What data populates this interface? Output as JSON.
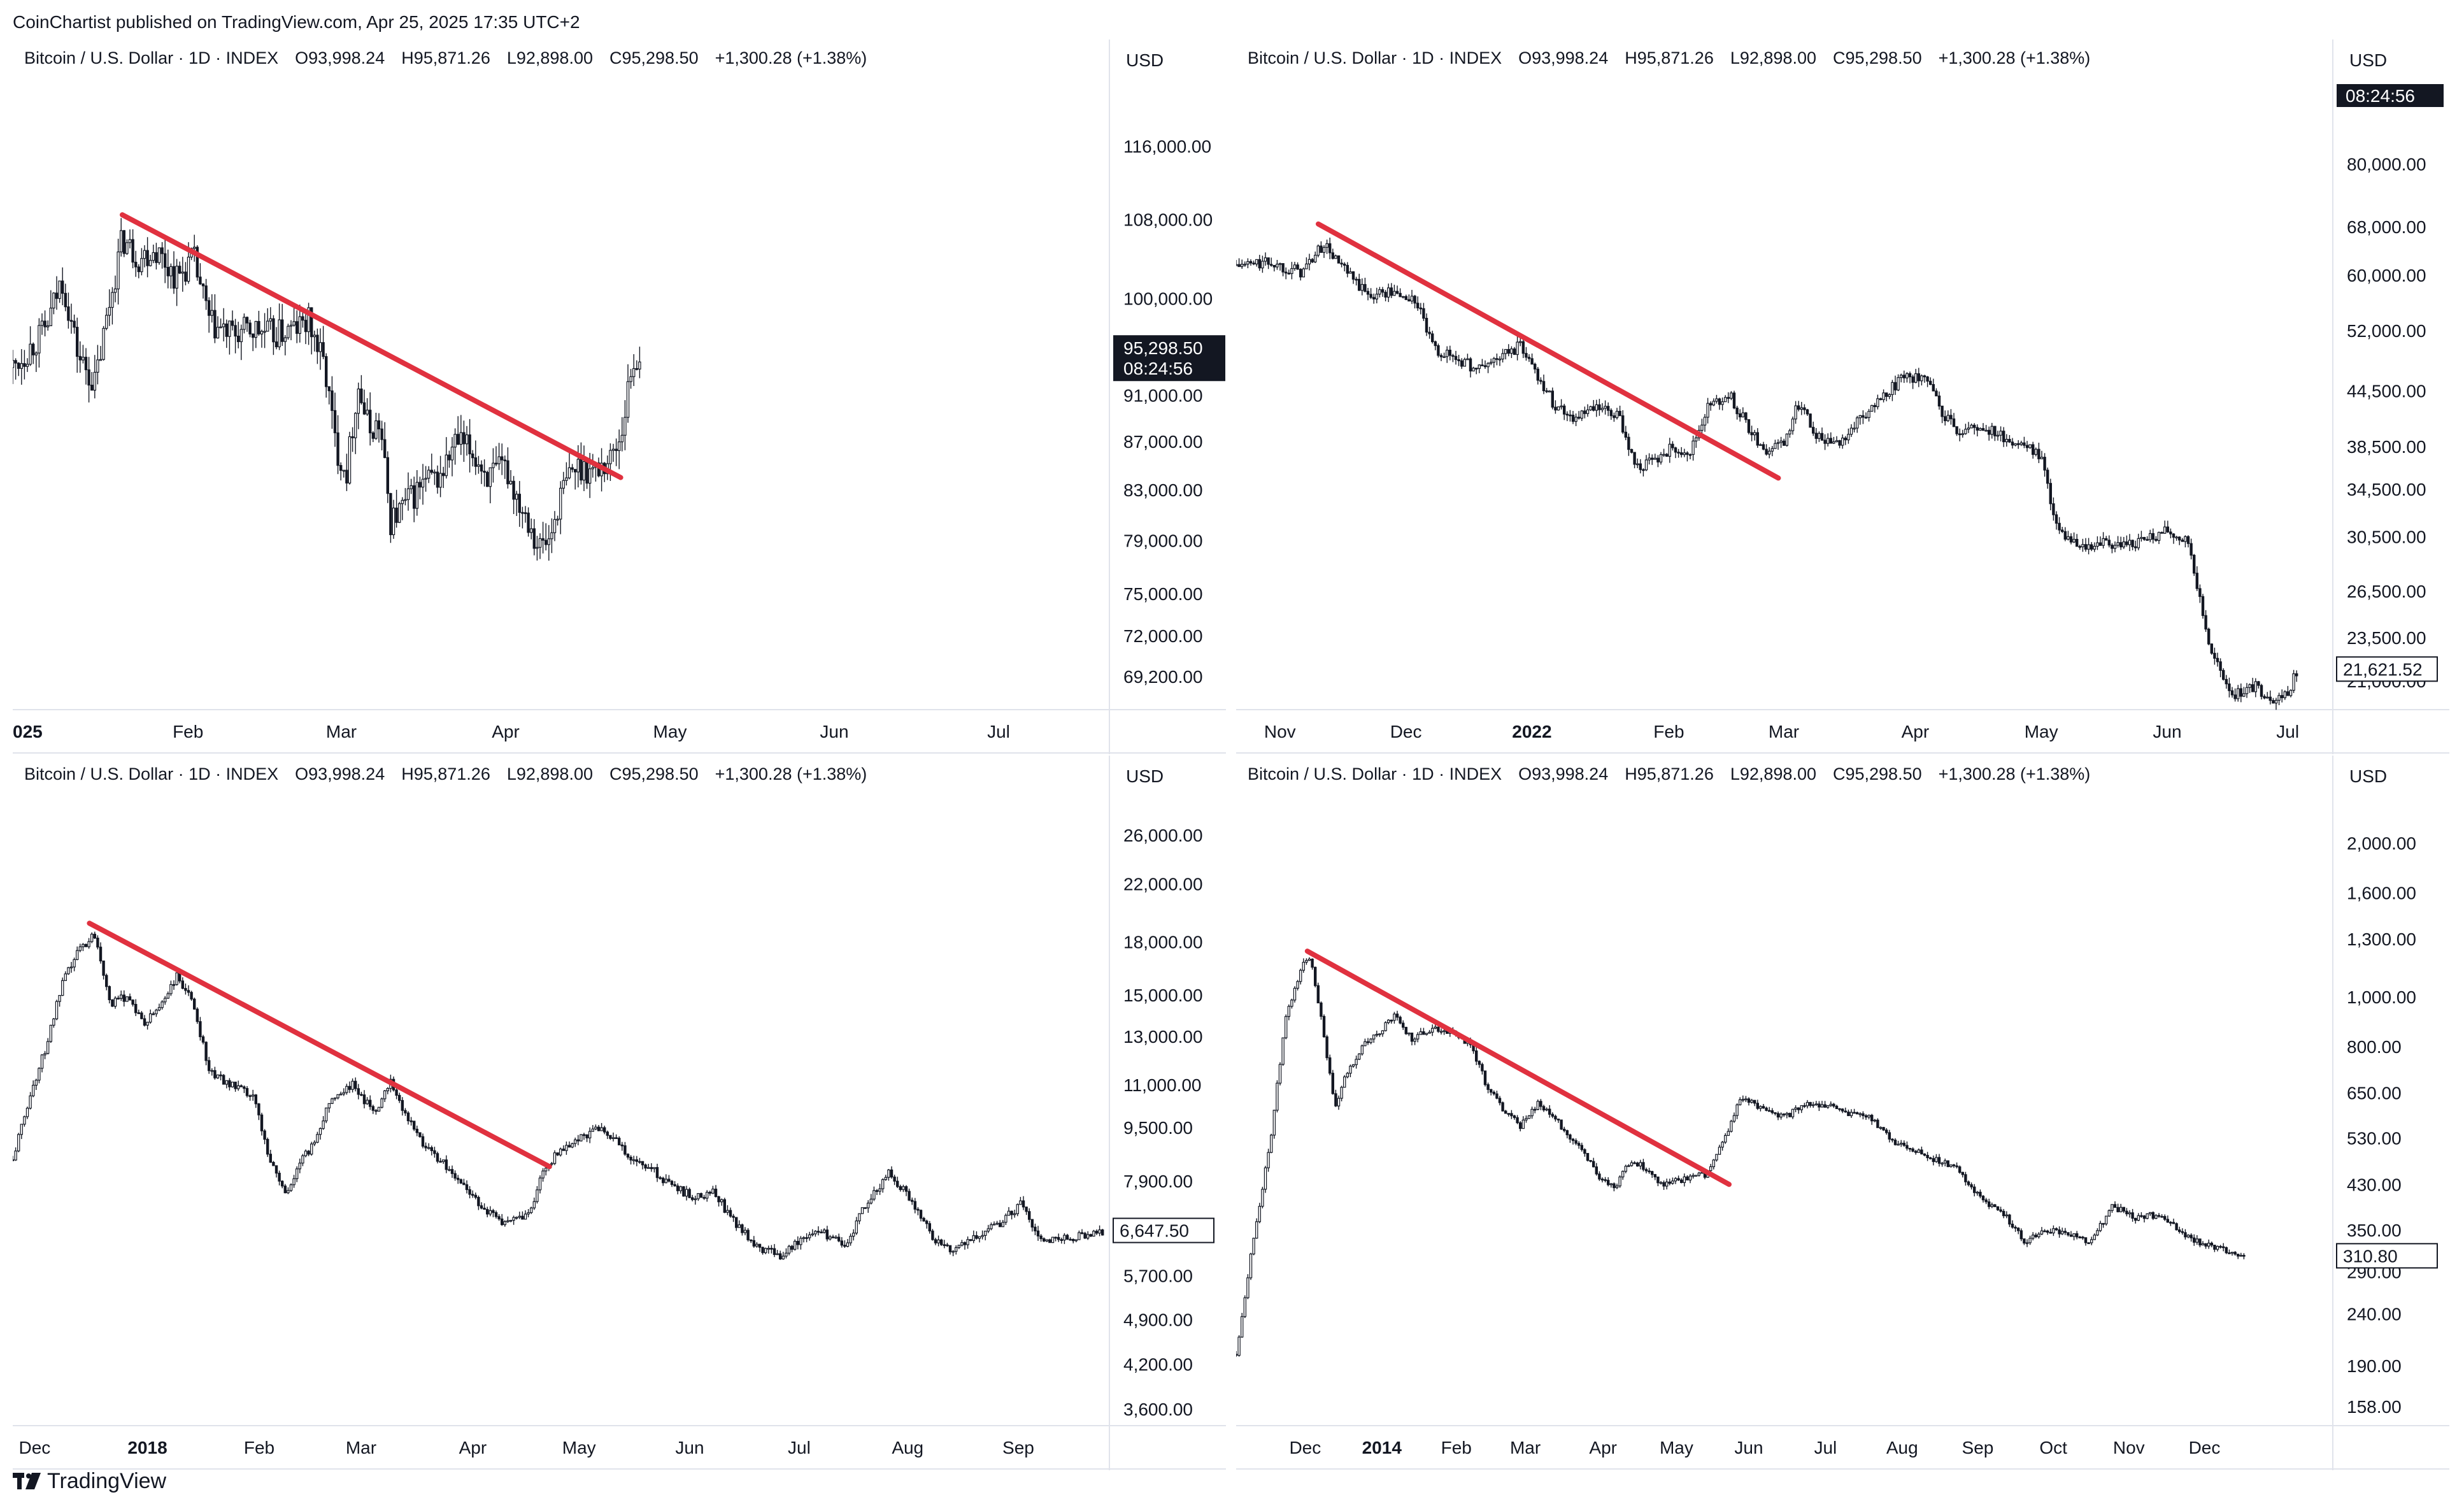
{
  "header": {
    "publisher": "CoinChartist published on TradingView.com, Apr 25, 2025 17:35 UTC+2"
  },
  "footer": {
    "brand": "TradingView"
  },
  "chart_data": [
    {
      "type": "candlestick",
      "legend": {
        "symbol": "Bitcoin / U.S. Dollar · 1D · INDEX",
        "open": "O93,998.24",
        "high": "H95,871.26",
        "low": "L92,898.00",
        "close": "C95,298.50",
        "change": "+1,300.28 (+1.38%)"
      },
      "unit": "USD",
      "log_scale": true,
      "y_ticks": [
        "116,000.00",
        "108,000.00",
        "100,000.00",
        "91,000.00",
        "87,000.00",
        "83,000.00",
        "79,000.00",
        "75,000.00",
        "72,000.00",
        "69,200.00"
      ],
      "y_tick_values": [
        116000,
        108000,
        100000,
        91000,
        87000,
        83000,
        79000,
        75000,
        72000,
        69200
      ],
      "y_range": [
        67000,
        124000
      ],
      "x_labels": [
        "025",
        "Feb",
        "Mar",
        "Apr",
        "May",
        "Jun",
        "Jul"
      ],
      "x_label_fracs": [
        0.0,
        0.16,
        0.3,
        0.45,
        0.6,
        0.75,
        0.9
      ],
      "x_label_bold": [
        true,
        false,
        false,
        false,
        false,
        false,
        false
      ],
      "price_marker": {
        "value": 95298.5,
        "label": "95,298.50",
        "sub": "08:24:56",
        "style": "filled"
      },
      "trendline": {
        "from": [
          0.1,
          108500
        ],
        "to": [
          0.555,
          84000
        ]
      },
      "series": [
        {
          "f": 0.0,
          "v": 93500
        },
        {
          "f": 0.03,
          "v": 97000
        },
        {
          "f": 0.045,
          "v": 102000
        },
        {
          "f": 0.06,
          "v": 94500
        },
        {
          "f": 0.075,
          "v": 92000
        },
        {
          "f": 0.09,
          "v": 100500
        },
        {
          "f": 0.1,
          "v": 106000
        },
        {
          "f": 0.115,
          "v": 104000
        },
        {
          "f": 0.13,
          "v": 105000
        },
        {
          "f": 0.15,
          "v": 102000
        },
        {
          "f": 0.165,
          "v": 104000
        },
        {
          "f": 0.18,
          "v": 97500
        },
        {
          "f": 0.2,
          "v": 96500
        },
        {
          "f": 0.22,
          "v": 97000
        },
        {
          "f": 0.24,
          "v": 96500
        },
        {
          "f": 0.26,
          "v": 97200
        },
        {
          "f": 0.27,
          "v": 97800
        },
        {
          "f": 0.285,
          "v": 93500
        },
        {
          "f": 0.295,
          "v": 86500
        },
        {
          "f": 0.305,
          "v": 84500
        },
        {
          "f": 0.315,
          "v": 92000
        },
        {
          "f": 0.325,
          "v": 88000
        },
        {
          "f": 0.335,
          "v": 88500
        },
        {
          "f": 0.345,
          "v": 80500
        },
        {
          "f": 0.36,
          "v": 82000
        },
        {
          "f": 0.375,
          "v": 83500
        },
        {
          "f": 0.39,
          "v": 84000
        },
        {
          "f": 0.405,
          "v": 87000
        },
        {
          "f": 0.42,
          "v": 86000
        },
        {
          "f": 0.435,
          "v": 84000
        },
        {
          "f": 0.45,
          "v": 84800
        },
        {
          "f": 0.46,
          "v": 82500
        },
        {
          "f": 0.47,
          "v": 81000
        },
        {
          "f": 0.48,
          "v": 78500
        },
        {
          "f": 0.49,
          "v": 79000
        },
        {
          "f": 0.5,
          "v": 82500
        },
        {
          "f": 0.51,
          "v": 84500
        },
        {
          "f": 0.52,
          "v": 85000
        },
        {
          "f": 0.53,
          "v": 84500
        },
        {
          "f": 0.545,
          "v": 85500
        },
        {
          "f": 0.555,
          "v": 87500
        },
        {
          "f": 0.565,
          "v": 93500
        },
        {
          "f": 0.575,
          "v": 95300
        }
      ],
      "series_end_frac": 0.575
    },
    {
      "type": "candlestick",
      "legend": {
        "symbol": "Bitcoin / U.S. Dollar · 1D · INDEX",
        "open": "O93,998.24",
        "high": "H95,871.26",
        "low": "L92,898.00",
        "close": "C95,298.50",
        "change": "+1,300.28 (+1.38%)"
      },
      "unit": "USD",
      "log_scale": true,
      "y_ticks": [
        "80,000.00",
        "68,000.00",
        "60,000.00",
        "52,000.00",
        "44,500.00",
        "38,500.00",
        "34,500.00",
        "30,500.00",
        "26,500.00",
        "23,500.00",
        "21,000.00"
      ],
      "y_tick_values": [
        80000,
        68000,
        60000,
        52000,
        44500,
        38500,
        34500,
        30500,
        26500,
        23500,
        21000
      ],
      "y_range": [
        19500,
        100000
      ],
      "x_labels": [
        "Nov",
        "Dec",
        "2022",
        "Feb",
        "Mar",
        "Apr",
        "May",
        "Jun",
        "Jul"
      ],
      "x_label_fracs": [
        0.04,
        0.155,
        0.27,
        0.395,
        0.5,
        0.62,
        0.735,
        0.85,
        0.96
      ],
      "x_label_bold": [
        false,
        false,
        true,
        false,
        false,
        false,
        false,
        false,
        false
      ],
      "top_marker": {
        "label": "08:24:56"
      },
      "price_marker": {
        "value": 21621.52,
        "label": "21,621.52",
        "style": "outline"
      },
      "trendline": {
        "from": [
          0.075,
          68500
        ],
        "to": [
          0.495,
          35500
        ]
      },
      "series": [
        {
          "f": 0.0,
          "v": 61500
        },
        {
          "f": 0.03,
          "v": 62000
        },
        {
          "f": 0.06,
          "v": 60500
        },
        {
          "f": 0.08,
          "v": 65000
        },
        {
          "f": 0.1,
          "v": 60500
        },
        {
          "f": 0.12,
          "v": 57000
        },
        {
          "f": 0.14,
          "v": 57500
        },
        {
          "f": 0.165,
          "v": 56000
        },
        {
          "f": 0.18,
          "v": 49500
        },
        {
          "f": 0.2,
          "v": 48500
        },
        {
          "f": 0.22,
          "v": 47000
        },
        {
          "f": 0.24,
          "v": 48500
        },
        {
          "f": 0.26,
          "v": 50000
        },
        {
          "f": 0.275,
          "v": 46500
        },
        {
          "f": 0.29,
          "v": 43000
        },
        {
          "f": 0.31,
          "v": 41500
        },
        {
          "f": 0.33,
          "v": 42500
        },
        {
          "f": 0.35,
          "v": 41500
        },
        {
          "f": 0.365,
          "v": 36500
        },
        {
          "f": 0.38,
          "v": 37000
        },
        {
          "f": 0.4,
          "v": 38500
        },
        {
          "f": 0.415,
          "v": 38000
        },
        {
          "f": 0.43,
          "v": 42500
        },
        {
          "f": 0.45,
          "v": 44000
        },
        {
          "f": 0.47,
          "v": 40000
        },
        {
          "f": 0.485,
          "v": 38000
        },
        {
          "f": 0.5,
          "v": 39000
        },
        {
          "f": 0.515,
          "v": 43500
        },
        {
          "f": 0.53,
          "v": 39500
        },
        {
          "f": 0.55,
          "v": 39000
        },
        {
          "f": 0.57,
          "v": 41500
        },
        {
          "f": 0.59,
          "v": 43500
        },
        {
          "f": 0.61,
          "v": 46500
        },
        {
          "f": 0.63,
          "v": 45500
        },
        {
          "f": 0.645,
          "v": 42000
        },
        {
          "f": 0.66,
          "v": 40000
        },
        {
          "f": 0.68,
          "v": 40500
        },
        {
          "f": 0.7,
          "v": 39500
        },
        {
          "f": 0.72,
          "v": 38500
        },
        {
          "f": 0.735,
          "v": 37500
        },
        {
          "f": 0.75,
          "v": 31000
        },
        {
          "f": 0.77,
          "v": 29500
        },
        {
          "f": 0.79,
          "v": 30000
        },
        {
          "f": 0.81,
          "v": 29800
        },
        {
          "f": 0.83,
          "v": 30300
        },
        {
          "f": 0.85,
          "v": 31000
        },
        {
          "f": 0.87,
          "v": 30000
        },
        {
          "f": 0.89,
          "v": 22500
        },
        {
          "f": 0.91,
          "v": 20300
        },
        {
          "f": 0.93,
          "v": 20700
        },
        {
          "f": 0.95,
          "v": 20000
        },
        {
          "f": 0.96,
          "v": 20500
        },
        {
          "f": 0.97,
          "v": 21600
        }
      ],
      "series_end_frac": 0.97
    },
    {
      "type": "candlestick",
      "legend": {
        "symbol": "Bitcoin / U.S. Dollar · 1D · INDEX",
        "open": "O93,998.24",
        "high": "H95,871.26",
        "low": "L92,898.00",
        "close": "C95,298.50",
        "change": "+1,300.28 (+1.38%)"
      },
      "unit": "USD",
      "log_scale": true,
      "y_ticks": [
        "26,000.00",
        "22,000.00",
        "18,000.00",
        "15,000.00",
        "13,000.00",
        "11,000.00",
        "9,500.00",
        "7,900.00",
        "5,700.00",
        "4,900.00",
        "4,200.00",
        "3,600.00"
      ],
      "y_tick_values": [
        26000,
        22000,
        18000,
        15000,
        13000,
        11000,
        9500,
        7900,
        5700,
        4900,
        4200,
        3600
      ],
      "y_range": [
        3400,
        30000
      ],
      "x_labels": [
        "Dec",
        "2018",
        "Feb",
        "Mar",
        "Apr",
        "May",
        "Jun",
        "Jul",
        "Aug",
        "Sep"
      ],
      "x_label_fracs": [
        0.02,
        0.123,
        0.225,
        0.318,
        0.42,
        0.517,
        0.618,
        0.718,
        0.817,
        0.918
      ],
      "x_label_bold": [
        false,
        true,
        false,
        false,
        false,
        false,
        false,
        false,
        false,
        false
      ],
      "price_marker": {
        "value": 6647.5,
        "label": "6,647.50",
        "style": "outline"
      },
      "trendline": {
        "from": [
          0.07,
          19200
        ],
        "to": [
          0.49,
          8300
        ]
      },
      "series": [
        {
          "f": 0.0,
          "v": 8500
        },
        {
          "f": 0.015,
          "v": 10500
        },
        {
          "f": 0.03,
          "v": 12500
        },
        {
          "f": 0.045,
          "v": 15500
        },
        {
          "f": 0.06,
          "v": 17500
        },
        {
          "f": 0.075,
          "v": 18500
        },
        {
          "f": 0.09,
          "v": 14500
        },
        {
          "f": 0.105,
          "v": 15000
        },
        {
          "f": 0.12,
          "v": 13500
        },
        {
          "f": 0.135,
          "v": 14500
        },
        {
          "f": 0.15,
          "v": 16000
        },
        {
          "f": 0.165,
          "v": 14500
        },
        {
          "f": 0.18,
          "v": 11500
        },
        {
          "f": 0.2,
          "v": 11000
        },
        {
          "f": 0.22,
          "v": 10500
        },
        {
          "f": 0.235,
          "v": 8500
        },
        {
          "f": 0.25,
          "v": 7500
        },
        {
          "f": 0.26,
          "v": 8300
        },
        {
          "f": 0.275,
          "v": 9000
        },
        {
          "f": 0.29,
          "v": 10500
        },
        {
          "f": 0.31,
          "v": 11000
        },
        {
          "f": 0.33,
          "v": 10000
        },
        {
          "f": 0.345,
          "v": 11200
        },
        {
          "f": 0.36,
          "v": 9800
        },
        {
          "f": 0.375,
          "v": 9000
        },
        {
          "f": 0.39,
          "v": 8500
        },
        {
          "f": 0.41,
          "v": 7800
        },
        {
          "f": 0.43,
          "v": 7200
        },
        {
          "f": 0.45,
          "v": 6800
        },
        {
          "f": 0.47,
          "v": 7000
        },
        {
          "f": 0.485,
          "v": 8200
        },
        {
          "f": 0.5,
          "v": 8800
        },
        {
          "f": 0.52,
          "v": 9200
        },
        {
          "f": 0.54,
          "v": 9500
        },
        {
          "f": 0.56,
          "v": 8700
        },
        {
          "f": 0.58,
          "v": 8300
        },
        {
          "f": 0.6,
          "v": 7800
        },
        {
          "f": 0.62,
          "v": 7500
        },
        {
          "f": 0.64,
          "v": 7600
        },
        {
          "f": 0.66,
          "v": 6800
        },
        {
          "f": 0.68,
          "v": 6300
        },
        {
          "f": 0.7,
          "v": 6100
        },
        {
          "f": 0.72,
          "v": 6500
        },
        {
          "f": 0.74,
          "v": 6600
        },
        {
          "f": 0.76,
          "v": 6300
        },
        {
          "f": 0.78,
          "v": 7400
        },
        {
          "f": 0.8,
          "v": 8100
        },
        {
          "f": 0.82,
          "v": 7400
        },
        {
          "f": 0.84,
          "v": 6500
        },
        {
          "f": 0.86,
          "v": 6200
        },
        {
          "f": 0.88,
          "v": 6500
        },
        {
          "f": 0.9,
          "v": 6800
        },
        {
          "f": 0.92,
          "v": 7300
        },
        {
          "f": 0.94,
          "v": 6400
        },
        {
          "f": 0.96,
          "v": 6500
        },
        {
          "f": 0.98,
          "v": 6550
        },
        {
          "f": 0.995,
          "v": 6650
        }
      ],
      "series_end_frac": 0.995
    },
    {
      "type": "candlestick",
      "legend": {
        "symbol": "Bitcoin / U.S. Dollar · 1D · INDEX",
        "open": "O93,998.24",
        "high": "H95,871.26",
        "low": "L92,898.00",
        "close": "C95,298.50",
        "change": "+1,300.28 (+1.38%)"
      },
      "unit": "USD",
      "log_scale": true,
      "y_ticks": [
        "2,000.00",
        "1,600.00",
        "1,300.00",
        "1,000.00",
        "800.00",
        "650.00",
        "530.00",
        "430.00",
        "350.00",
        "290.00",
        "240.00",
        "190.00",
        "158.00"
      ],
      "y_tick_values": [
        2000,
        1600,
        1300,
        1000,
        800,
        650,
        530,
        430,
        350,
        290,
        240,
        190,
        158
      ],
      "y_range": [
        145,
        2500
      ],
      "x_labels": [
        "Dec",
        "2014",
        "Feb",
        "Mar",
        "Apr",
        "May",
        "Jun",
        "Jul",
        "Aug",
        "Sep",
        "Oct",
        "Nov",
        "Dec"
      ],
      "x_label_fracs": [
        0.063,
        0.133,
        0.201,
        0.264,
        0.335,
        0.402,
        0.468,
        0.538,
        0.608,
        0.677,
        0.746,
        0.815,
        0.884
      ],
      "x_label_bold": [
        false,
        true,
        false,
        false,
        false,
        false,
        false,
        false,
        false,
        false,
        false,
        false,
        false
      ],
      "price_marker": {
        "value": 310.8,
        "label": "310.80",
        "style": "outline"
      },
      "trendline": {
        "from": [
          0.065,
          1230
        ],
        "to": [
          0.45,
          430
        ]
      },
      "series": [
        {
          "f": 0.0,
          "v": 200
        },
        {
          "f": 0.015,
          "v": 330
        },
        {
          "f": 0.03,
          "v": 500
        },
        {
          "f": 0.045,
          "v": 900
        },
        {
          "f": 0.06,
          "v": 1150
        },
        {
          "f": 0.068,
          "v": 1200
        },
        {
          "f": 0.08,
          "v": 850
        },
        {
          "f": 0.09,
          "v": 600
        },
        {
          "f": 0.1,
          "v": 700
        },
        {
          "f": 0.115,
          "v": 800
        },
        {
          "f": 0.13,
          "v": 850
        },
        {
          "f": 0.145,
          "v": 920
        },
        {
          "f": 0.16,
          "v": 830
        },
        {
          "f": 0.18,
          "v": 870
        },
        {
          "f": 0.2,
          "v": 850
        },
        {
          "f": 0.215,
          "v": 800
        },
        {
          "f": 0.23,
          "v": 660
        },
        {
          "f": 0.245,
          "v": 600
        },
        {
          "f": 0.26,
          "v": 560
        },
        {
          "f": 0.275,
          "v": 620
        },
        {
          "f": 0.29,
          "v": 580
        },
        {
          "f": 0.31,
          "v": 520
        },
        {
          "f": 0.33,
          "v": 450
        },
        {
          "f": 0.345,
          "v": 420
        },
        {
          "f": 0.36,
          "v": 480
        },
        {
          "f": 0.375,
          "v": 460
        },
        {
          "f": 0.39,
          "v": 430
        },
        {
          "f": 0.41,
          "v": 440
        },
        {
          "f": 0.43,
          "v": 450
        },
        {
          "f": 0.445,
          "v": 520
        },
        {
          "f": 0.46,
          "v": 630
        },
        {
          "f": 0.48,
          "v": 610
        },
        {
          "f": 0.5,
          "v": 580
        },
        {
          "f": 0.52,
          "v": 620
        },
        {
          "f": 0.54,
          "v": 615
        },
        {
          "f": 0.56,
          "v": 590
        },
        {
          "f": 0.58,
          "v": 580
        },
        {
          "f": 0.6,
          "v": 520
        },
        {
          "f": 0.62,
          "v": 500
        },
        {
          "f": 0.64,
          "v": 480
        },
        {
          "f": 0.66,
          "v": 460
        },
        {
          "f": 0.68,
          "v": 400
        },
        {
          "f": 0.7,
          "v": 380
        },
        {
          "f": 0.72,
          "v": 330
        },
        {
          "f": 0.74,
          "v": 350
        },
        {
          "f": 0.76,
          "v": 345
        },
        {
          "f": 0.78,
          "v": 330
        },
        {
          "f": 0.8,
          "v": 390
        },
        {
          "f": 0.82,
          "v": 370
        },
        {
          "f": 0.84,
          "v": 375
        },
        {
          "f": 0.86,
          "v": 350
        },
        {
          "f": 0.88,
          "v": 330
        },
        {
          "f": 0.9,
          "v": 320
        },
        {
          "f": 0.92,
          "v": 312
        }
      ],
      "series_end_frac": 0.92
    }
  ]
}
